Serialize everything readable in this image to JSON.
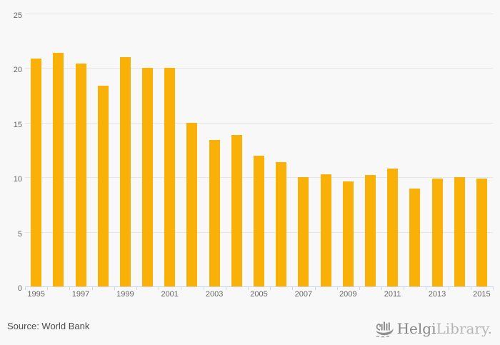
{
  "chart_data": {
    "type": "bar",
    "categories": [
      "1995",
      "1996",
      "1997",
      "1998",
      "1999",
      "2000",
      "2001",
      "2002",
      "2003",
      "2004",
      "2005",
      "2006",
      "2007",
      "2008",
      "2009",
      "2010",
      "2011",
      "2012",
      "2013",
      "2014",
      "2015"
    ],
    "values": [
      20.9,
      21.4,
      20.4,
      18.4,
      21.0,
      20.0,
      20.0,
      15.0,
      13.4,
      13.9,
      12.0,
      11.4,
      10.0,
      10.3,
      9.6,
      10.2,
      10.8,
      9.0,
      9.9,
      10.0,
      9.9
    ],
    "xlabel": "",
    "ylabel": "",
    "ylim": [
      0,
      25
    ],
    "yticks": [
      0,
      5,
      10,
      15,
      20,
      25
    ],
    "xtick_labels": [
      "1995",
      "1997",
      "1999",
      "2001",
      "2003",
      "2005",
      "2007",
      "2009",
      "2011",
      "2013",
      "2015"
    ],
    "grid": "horizontal",
    "legend": "none"
  },
  "colors": {
    "background": "#f8f8f8",
    "bar": "#f9b007",
    "gridline": "#e6e6e6",
    "axis_line": "#ccd6eb",
    "tick_label": "#666666",
    "source_text": "#4d4d4d",
    "logo_dark": "#868686",
    "logo_light": "#b6b6b6"
  },
  "footer": {
    "source_label": "Source: World Bank",
    "brand_bold": "Helgi",
    "brand_light": "Library."
  },
  "icons": {
    "logo_icon": "helgi-ship-icon"
  }
}
